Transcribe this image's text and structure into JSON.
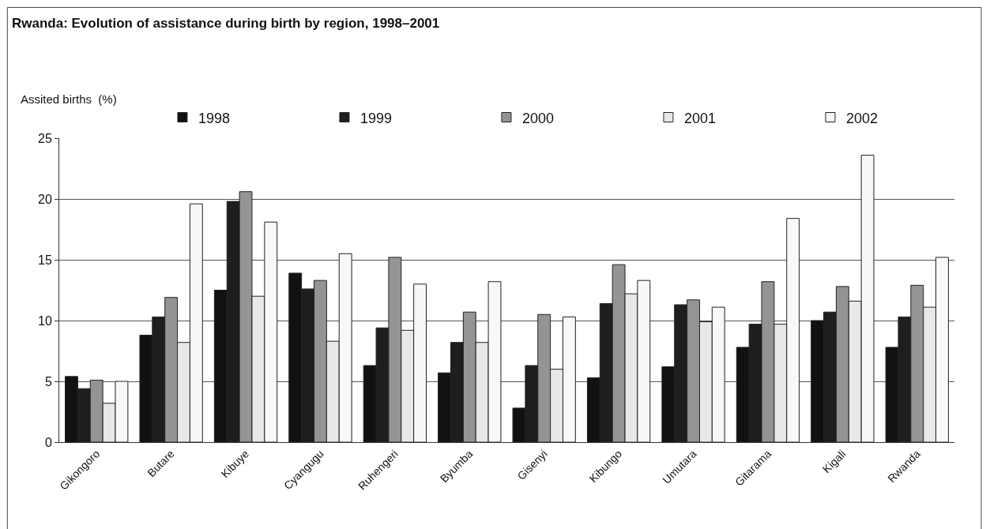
{
  "chart_data": {
    "type": "bar",
    "title": "Rwanda: Evolution of assistance during birth by region, 1998–2001",
    "ylabel": "Assited births  (%)",
    "categories": [
      "Gikongoro",
      "Butare",
      "Kibuye",
      "Cyangugu",
      "Ruhengeri",
      "Byumba",
      "Gisenyi",
      "Kibungo",
      "Umutara",
      "Gitarama",
      "Kigali",
      "Rwanda"
    ],
    "series": [
      {
        "name": "1998",
        "color": "#111111",
        "values": [
          5.4,
          8.8,
          12.5,
          13.9,
          6.3,
          5.7,
          2.8,
          5.3,
          6.2,
          7.8,
          10.0,
          7.8
        ]
      },
      {
        "name": "1999",
        "color": "#1e1e1e",
        "values": [
          4.4,
          10.3,
          19.8,
          12.6,
          9.4,
          8.2,
          6.3,
          11.4,
          11.3,
          9.7,
          10.7,
          10.3
        ]
      },
      {
        "name": "2000",
        "color": "#949494",
        "values": [
          5.1,
          11.9,
          20.6,
          13.3,
          15.2,
          10.7,
          10.5,
          14.6,
          11.7,
          13.2,
          12.8,
          12.9
        ]
      },
      {
        "name": "2001",
        "color": "#e8e8e8",
        "values": [
          3.2,
          8.2,
          12.0,
          8.3,
          9.2,
          8.2,
          6.0,
          12.2,
          9.9,
          9.7,
          11.6,
          11.1
        ]
      },
      {
        "name": "2002",
        "color": "#f8f8f8",
        "values": [
          5.0,
          19.6,
          18.1,
          15.5,
          13.0,
          13.2,
          10.3,
          13.3,
          11.1,
          18.4,
          23.6,
          15.2
        ]
      }
    ],
    "ylim": [
      0,
      25
    ],
    "yticks": [
      0,
      5,
      10,
      15,
      20,
      25
    ],
    "grid": "y",
    "legend": "top"
  }
}
